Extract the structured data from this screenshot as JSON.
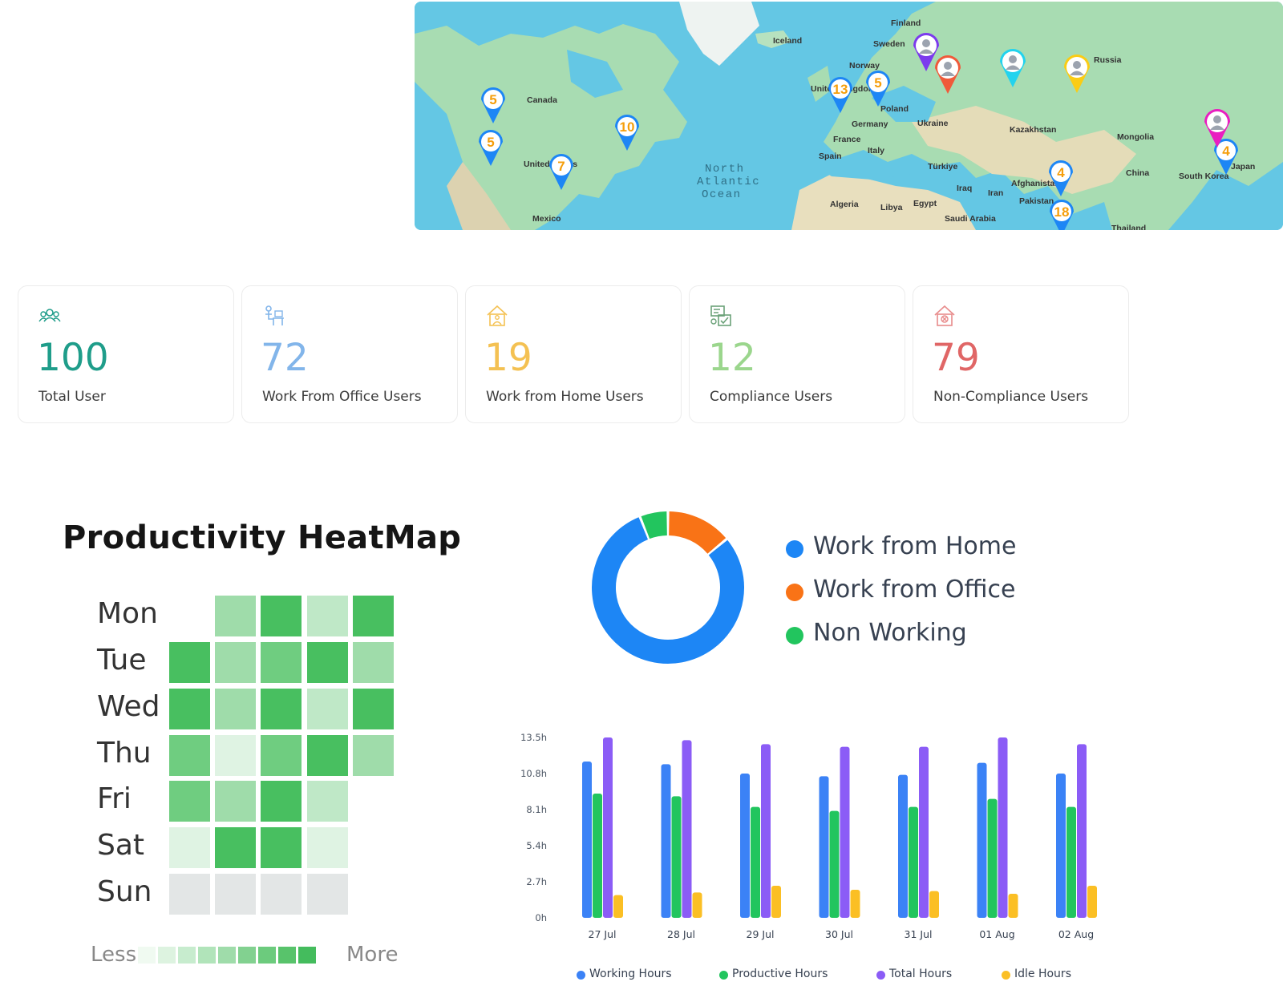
{
  "map": {
    "labels": {
      "finland": "Finland",
      "iceland": "Iceland",
      "sweden": "Sweden",
      "norway": "Norway",
      "russia": "Russia",
      "canada": "Canada",
      "uk": "United Kingdom",
      "poland": "Poland",
      "germany": "Germany",
      "ukraine": "Ukraine",
      "france": "France",
      "italy": "Italy",
      "spain": "Spain",
      "kazakhstan": "Kazakhstan",
      "mongolia": "Mongolia",
      "turkiye": "Türkiye",
      "china": "China",
      "south_korea": "South Korea",
      "japan": "Japan",
      "iraq": "Iraq",
      "iran": "Iran",
      "afghanistan": "Afghanistan",
      "pakistan": "Pakistan",
      "algeria": "Algeria",
      "libya": "Libya",
      "egypt": "Egypt",
      "saudi_arabia": "Saudi Arabia",
      "thailand": "Thailand",
      "united_states": "United States",
      "mexico": "Mexico",
      "ocean": [
        "North",
        "Atlantic",
        "Ocean"
      ]
    },
    "pins": [
      {
        "id": "pin-vancouver",
        "count": "5",
        "color": "#1d86f5"
      },
      {
        "id": "pin-sanfrancisco",
        "count": "5",
        "color": "#1d86f5"
      },
      {
        "id": "pin-toronto",
        "count": "10",
        "color": "#1d86f5"
      },
      {
        "id": "pin-texas",
        "count": "7",
        "color": "#1d86f5"
      },
      {
        "id": "pin-uk",
        "count": "13",
        "color": "#1d86f5"
      },
      {
        "id": "pin-denmark",
        "count": "5",
        "color": "#1d86f5"
      },
      {
        "id": "pin-india-north",
        "count": "4",
        "color": "#1d86f5"
      },
      {
        "id": "pin-india-south",
        "count": "18",
        "color": "#1d86f5"
      },
      {
        "id": "pin-japan",
        "count": "4",
        "color": "#1d86f5"
      }
    ],
    "user_pins": [
      {
        "id": "user-pin-sweden",
        "color": "#7c3aed"
      },
      {
        "id": "user-pin-moscow",
        "color": "#f05a3a"
      },
      {
        "id": "user-pin-urals",
        "color": "#22d3ee"
      },
      {
        "id": "user-pin-siberia",
        "color": "#facc15"
      },
      {
        "id": "user-pin-korea",
        "color": "#e91ec0"
      }
    ]
  },
  "stats": [
    {
      "value": "100",
      "label": "Total User",
      "color": "#1f9d8a",
      "icon": "users-group-icon"
    },
    {
      "value": "72",
      "label": "Work From Office Users",
      "color": "#82b5ea",
      "icon": "office-desk-icon"
    },
    {
      "value": "19",
      "label": "Work from Home Users",
      "color": "#f4c152",
      "icon": "home-work-icon"
    },
    {
      "value": "12",
      "label": "Compliance Users",
      "color": "#9bd68d",
      "icon": "compliance-icon"
    },
    {
      "value": "79",
      "label": "Non-Compliance Users",
      "color": "#e06666",
      "icon": "non-compliance-icon"
    }
  ],
  "heatmap": {
    "title": "Productivity HeatMap",
    "days": [
      "Mon",
      "Tue",
      "Wed",
      "Thu",
      "Fri",
      "Sat",
      "Sun"
    ],
    "cells": [
      [
        null,
        2,
        4,
        1,
        4
      ],
      [
        4,
        2,
        3,
        4,
        2
      ],
      [
        4,
        2,
        4,
        1,
        4
      ],
      [
        3,
        0.5,
        3,
        4,
        2
      ],
      [
        3,
        2,
        4,
        1,
        null
      ],
      [
        0.5,
        4,
        4,
        0.5,
        null
      ],
      [
        -1,
        -1,
        -1,
        -1,
        null
      ]
    ],
    "less_label": "Less",
    "more_label": "More",
    "scale_colors": [
      "#f0faf1",
      "#ddf3e0",
      "#c7ecce",
      "#b1e4ba",
      "#9fdcaa",
      "#82d190",
      "#6ccb7d",
      "#58c36b",
      "#44bc5d"
    ]
  },
  "donut": {
    "segments": [
      {
        "name": "Work from Home",
        "value": 80,
        "color": "#1d86f5"
      },
      {
        "name": "Work from Office",
        "value": 14,
        "color": "#f97316"
      },
      {
        "name": "Non Working",
        "value": 6,
        "color": "#22c55e"
      }
    ]
  },
  "chart_data": {
    "type": "bar",
    "categories": [
      "27 Jul",
      "28 Jul",
      "29 Jul",
      "30 Jul",
      "31 Jul",
      "01 Aug",
      "02 Aug"
    ],
    "y_ticks": [
      "13.5h",
      "10.8h",
      "8.1h",
      "5.4h",
      "2.7h",
      "0h"
    ],
    "ylim": [
      0,
      13.5
    ],
    "series": [
      {
        "name": "Working Hours",
        "color": "#3b82f6",
        "values": [
          11.7,
          11.5,
          10.8,
          10.6,
          10.7,
          11.6,
          10.8
        ]
      },
      {
        "name": "Productive Hours",
        "color": "#22c55e",
        "values": [
          9.3,
          9.1,
          8.3,
          8.0,
          8.3,
          8.9,
          8.3
        ]
      },
      {
        "name": "Total Hours",
        "color": "#8b5cf6",
        "values": [
          13.5,
          13.3,
          13.0,
          12.8,
          12.8,
          13.5,
          13.0
        ]
      },
      {
        "name": "Idle Hours",
        "color": "#fbbf24",
        "values": [
          1.7,
          1.9,
          2.4,
          2.1,
          2.0,
          1.8,
          2.4
        ]
      }
    ],
    "legend": "bottom"
  }
}
